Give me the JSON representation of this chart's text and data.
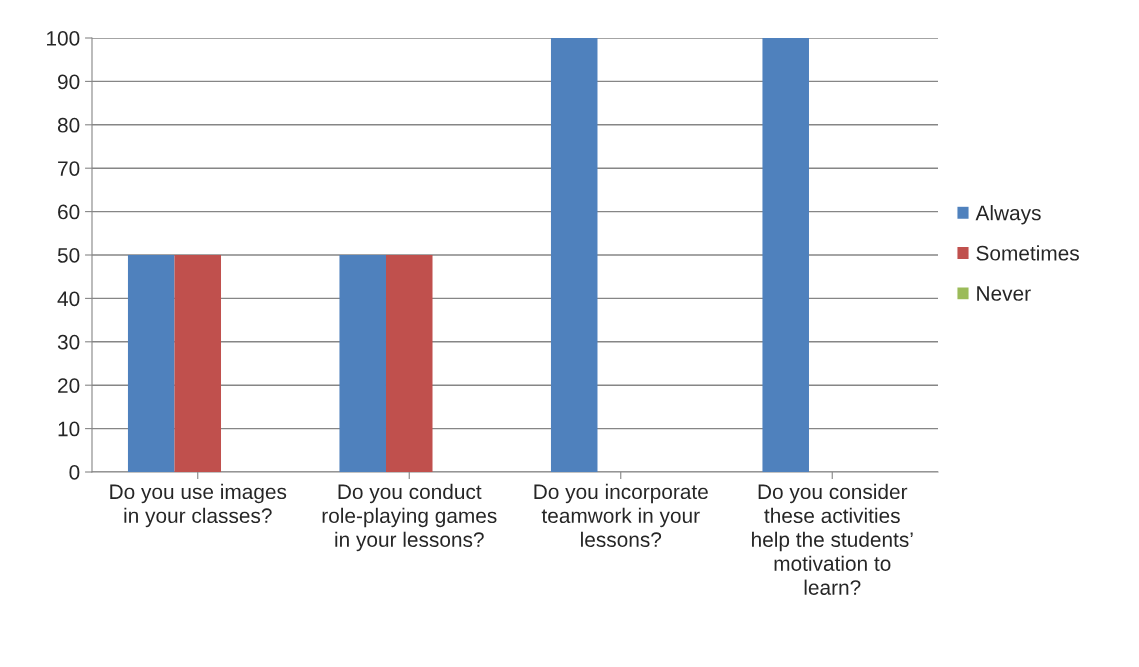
{
  "chart_data": {
    "type": "bar",
    "categories": [
      "Do you use images\nin your classes?",
      "Do you conduct\nrole-playing games\nin your lessons?",
      "Do you incorporate\nteamwork in your\nlessons?",
      "Do you consider\nthese activities\nhelp the students’\nmotivation to\nlearn?"
    ],
    "series": [
      {
        "name": "Always",
        "color": "#4f81bd",
        "values": [
          50,
          50,
          100,
          100
        ]
      },
      {
        "name": "Sometimes",
        "color": "#c0504d",
        "values": [
          50,
          50,
          0,
          0
        ]
      },
      {
        "name": "Never",
        "color": "#9bbb59",
        "values": [
          0,
          0,
          0,
          0
        ]
      }
    ],
    "ylim": [
      0,
      100
    ],
    "yticks": [
      0,
      10,
      20,
      30,
      40,
      50,
      60,
      70,
      80,
      90,
      100
    ],
    "grid": "y",
    "legend": "right"
  }
}
